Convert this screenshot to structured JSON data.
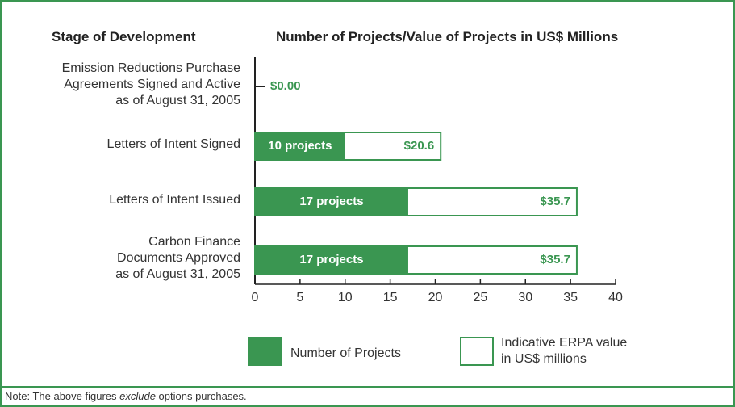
{
  "chart_data": {
    "type": "bar",
    "orientation": "horizontal",
    "category_axis_title": "Stage of Development",
    "title": "Number of Projects/Value of Projects in US$ Millions",
    "categories": [
      "Emission Reductions Purchase\nAgreements Signed and Active\nas of August 31, 2005",
      "Letters of Intent Signed",
      "Letters of Intent Issued",
      "Carbon Finance\nDocuments Approved\nas of August 31, 2005"
    ],
    "series": [
      {
        "name": "Number of Projects",
        "color": "#3a9651",
        "values": [
          0,
          10,
          17,
          17
        ],
        "value_labels": [
          null,
          "10 projects",
          "17 projects",
          "17 projects"
        ]
      },
      {
        "name": "Indicative ERPA value in US$ millions",
        "color": "#3a9651",
        "values": [
          0,
          20.6,
          35.7,
          35.7
        ],
        "value_labels": [
          "$0.00",
          "$20.6",
          "$35.7",
          "$35.7"
        ]
      }
    ],
    "xlim": [
      0,
      40
    ],
    "xticks": [
      0,
      5,
      10,
      15,
      20,
      25,
      30,
      35,
      40
    ],
    "note": {
      "before": "Note: The above figures ",
      "emphasis": "exclude",
      "after": " options purchases."
    }
  }
}
